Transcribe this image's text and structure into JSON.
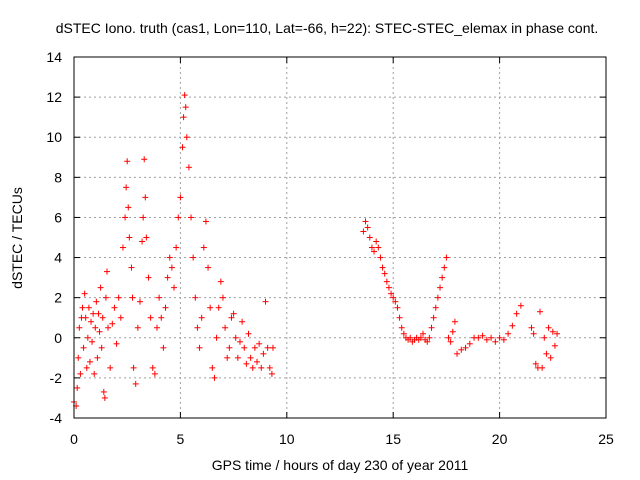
{
  "chart_data": {
    "type": "scatter",
    "title": "dSTEC Iono. truth (cas1, Lon=110, Lat=-66, h=22): STEC-STEC_elemax in phase cont.",
    "xlabel": "GPS time / hours of day 230 of year 2011",
    "ylabel": "dSTEC  / TECUs",
    "xlim": [
      0,
      25
    ],
    "ylim": [
      -4,
      14
    ],
    "xticks": [
      0,
      5,
      10,
      15,
      20,
      25
    ],
    "yticks": [
      -4,
      -2,
      0,
      2,
      4,
      6,
      8,
      10,
      12,
      14
    ],
    "grid": true,
    "marker": "+",
    "color": "#ff0000",
    "series": [
      {
        "name": "STEC-STEC_elemax",
        "segments": [
          [
            [
              0.0,
              -3.2
            ],
            [
              0.1,
              -3.4
            ],
            [
              0.15,
              -2.5
            ],
            [
              0.2,
              -1.0
            ],
            [
              0.25,
              0.5
            ],
            [
              0.3,
              -1.8
            ],
            [
              0.35,
              1.0
            ],
            [
              0.4,
              1.5
            ],
            [
              0.45,
              -0.5
            ],
            [
              0.5,
              2.2
            ],
            [
              0.55,
              1.0
            ],
            [
              0.6,
              -1.5
            ],
            [
              0.65,
              0.0
            ],
            [
              0.7,
              1.5
            ],
            [
              0.75,
              -1.2
            ],
            [
              0.8,
              0.8
            ],
            [
              0.85,
              -0.2
            ],
            [
              0.9,
              1.2
            ],
            [
              0.95,
              -1.8
            ],
            [
              1.0,
              0.5
            ],
            [
              1.05,
              1.8
            ],
            [
              1.1,
              -1.0
            ],
            [
              1.15,
              1.2
            ],
            [
              1.2,
              0.3
            ],
            [
              1.25,
              2.5
            ],
            [
              1.3,
              -0.5
            ],
            [
              1.35,
              1.0
            ],
            [
              1.4,
              -2.7
            ],
            [
              1.45,
              -3.0
            ],
            [
              1.5,
              2.0
            ],
            [
              1.55,
              3.3
            ],
            [
              1.6,
              0.5
            ],
            [
              1.7,
              -1.5
            ],
            [
              1.8,
              0.7
            ],
            [
              1.9,
              1.5
            ],
            [
              2.0,
              -0.3
            ],
            [
              2.1,
              2.0
            ],
            [
              2.2,
              1.0
            ],
            [
              2.3,
              4.5
            ],
            [
              2.4,
              6.0
            ],
            [
              2.45,
              7.5
            ],
            [
              2.5,
              8.8
            ],
            [
              2.55,
              6.5
            ],
            [
              2.6,
              5.0
            ],
            [
              2.7,
              3.5
            ],
            [
              2.75,
              2.0
            ],
            [
              2.8,
              -1.5
            ],
            [
              2.9,
              -2.3
            ],
            [
              3.0,
              0.5
            ],
            [
              3.1,
              1.8
            ],
            [
              3.2,
              4.8
            ],
            [
              3.25,
              6.0
            ],
            [
              3.3,
              8.9
            ],
            [
              3.35,
              7.0
            ],
            [
              3.4,
              5.0
            ],
            [
              3.5,
              3.0
            ],
            [
              3.6,
              1.0
            ],
            [
              3.7,
              -1.5
            ],
            [
              3.8,
              -1.8
            ],
            [
              3.9,
              0.5
            ],
            [
              4.0,
              2.0
            ],
            [
              4.1,
              1.0
            ],
            [
              4.2,
              -0.5
            ],
            [
              4.3,
              1.5
            ],
            [
              4.4,
              3.0
            ],
            [
              4.5,
              4.0
            ],
            [
              4.6,
              3.5
            ],
            [
              4.7,
              2.5
            ],
            [
              4.8,
              4.5
            ],
            [
              4.9,
              6.0
            ],
            [
              5.0,
              7.0
            ],
            [
              5.1,
              9.5
            ],
            [
              5.15,
              11.0
            ],
            [
              5.2,
              12.1
            ],
            [
              5.25,
              11.5
            ],
            [
              5.3,
              10.0
            ],
            [
              5.4,
              8.5
            ],
            [
              5.5,
              6.0
            ],
            [
              5.6,
              4.0
            ],
            [
              5.7,
              2.0
            ],
            [
              5.8,
              0.5
            ],
            [
              5.9,
              -0.5
            ],
            [
              6.0,
              1.0
            ],
            [
              6.1,
              4.5
            ],
            [
              6.2,
              5.8
            ],
            [
              6.3,
              3.5
            ],
            [
              6.4,
              1.5
            ],
            [
              6.5,
              -1.5
            ],
            [
              6.6,
              -2.0
            ],
            [
              6.7,
              0.0
            ],
            [
              6.8,
              1.5
            ],
            [
              6.9,
              2.8
            ],
            [
              7.0,
              2.0
            ],
            [
              7.1,
              0.5
            ],
            [
              7.2,
              -1.0
            ],
            [
              7.3,
              -0.5
            ],
            [
              7.4,
              1.0
            ],
            [
              7.5,
              1.2
            ],
            [
              7.6,
              0.0
            ],
            [
              7.7,
              -1.0
            ],
            [
              7.8,
              -0.2
            ],
            [
              7.9,
              0.8
            ],
            [
              8.0,
              -0.5
            ],
            [
              8.1,
              -1.3
            ],
            [
              8.2,
              0.2
            ],
            [
              8.3,
              -1.0
            ],
            [
              8.4,
              -1.5
            ],
            [
              8.5,
              -0.5
            ],
            [
              8.6,
              -1.2
            ],
            [
              8.7,
              -0.3
            ],
            [
              8.8,
              -1.5
            ],
            [
              8.9,
              -0.8
            ],
            [
              9.0,
              1.8
            ],
            [
              9.1,
              -0.5
            ],
            [
              9.2,
              -1.5
            ],
            [
              9.3,
              -1.8
            ],
            [
              9.35,
              -0.5
            ]
          ],
          [
            [
              13.6,
              5.3
            ],
            [
              13.7,
              5.8
            ],
            [
              13.8,
              5.5
            ],
            [
              13.9,
              5.0
            ],
            [
              14.0,
              4.5
            ],
            [
              14.1,
              4.3
            ],
            [
              14.2,
              4.8
            ],
            [
              14.3,
              4.5
            ],
            [
              14.4,
              4.0
            ],
            [
              14.5,
              3.5
            ],
            [
              14.6,
              3.2
            ],
            [
              14.7,
              2.8
            ],
            [
              14.8,
              2.5
            ],
            [
              14.9,
              2.2
            ],
            [
              15.0,
              2.0
            ],
            [
              15.1,
              1.8
            ],
            [
              15.2,
              1.5
            ],
            [
              15.3,
              1.0
            ],
            [
              15.4,
              0.5
            ],
            [
              15.5,
              0.2
            ],
            [
              15.6,
              0.0
            ],
            [
              15.7,
              -0.1
            ],
            [
              15.8,
              0.0
            ],
            [
              15.9,
              -0.2
            ],
            [
              16.0,
              -0.1
            ],
            [
              16.1,
              0.0
            ],
            [
              16.2,
              -0.1
            ],
            [
              16.3,
              0.0
            ],
            [
              16.4,
              0.2
            ],
            [
              16.5,
              -0.1
            ],
            [
              16.6,
              -0.2
            ],
            [
              16.7,
              0.0
            ],
            [
              16.8,
              0.5
            ],
            [
              16.9,
              1.0
            ],
            [
              17.0,
              1.5
            ],
            [
              17.1,
              2.0
            ],
            [
              17.2,
              2.5
            ],
            [
              17.3,
              3.0
            ],
            [
              17.4,
              3.5
            ],
            [
              17.5,
              4.0
            ],
            [
              17.6,
              0.0
            ],
            [
              17.7,
              -0.2
            ],
            [
              17.8,
              0.3
            ],
            [
              17.9,
              0.8
            ]
          ],
          [
            [
              18.0,
              -0.8
            ],
            [
              18.2,
              -0.6
            ],
            [
              18.4,
              -0.5
            ],
            [
              18.6,
              -0.3
            ],
            [
              18.8,
              0.0
            ],
            [
              19.0,
              0.0
            ],
            [
              19.2,
              0.1
            ],
            [
              19.4,
              -0.1
            ],
            [
              19.6,
              0.0
            ],
            [
              19.8,
              -0.2
            ],
            [
              20.0,
              0.0
            ],
            [
              20.2,
              -0.1
            ],
            [
              20.4,
              0.2
            ],
            [
              20.6,
              0.6
            ],
            [
              20.8,
              1.2
            ],
            [
              21.0,
              1.6
            ]
          ],
          [
            [
              21.5,
              0.5
            ],
            [
              21.6,
              0.2
            ],
            [
              21.7,
              -1.3
            ],
            [
              21.8,
              -1.5
            ],
            [
              21.9,
              1.3
            ],
            [
              22.0,
              -1.5
            ],
            [
              22.1,
              0.0
            ],
            [
              22.2,
              -0.8
            ],
            [
              22.3,
              0.5
            ],
            [
              22.4,
              -1.0
            ],
            [
              22.5,
              0.3
            ],
            [
              22.6,
              -0.4
            ],
            [
              22.7,
              0.2
            ]
          ]
        ]
      }
    ]
  }
}
